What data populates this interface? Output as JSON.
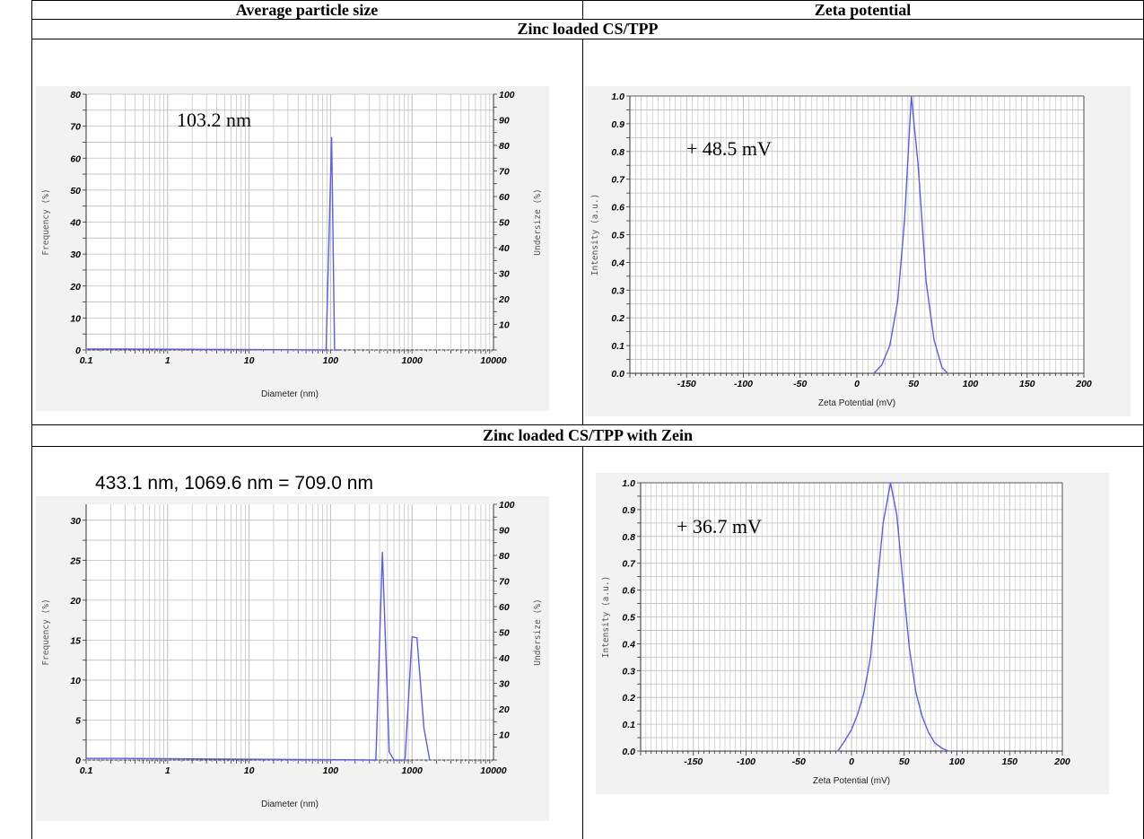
{
  "table": {
    "col_headers": [
      "Average particle size",
      "Zeta potential"
    ],
    "sections": [
      "Zinc loaded CS/TPP",
      "Zinc loaded CS/TPP with Zein"
    ]
  },
  "chart_data": [
    {
      "id": "size1",
      "type": "line",
      "xscale": "log",
      "xlim": [
        0.1,
        10000
      ],
      "ylim": [
        0,
        80
      ],
      "y2lim": [
        0,
        100
      ],
      "x_ticks": [
        "0.1",
        "1",
        "10",
        "100",
        "1000",
        "10000"
      ],
      "y_ticks": [
        "0",
        "10",
        "20",
        "30",
        "40",
        "50",
        "60",
        "70",
        "80"
      ],
      "y2_ticks": [
        "10",
        "20",
        "30",
        "40",
        "50",
        "60",
        "70",
        "80",
        "90",
        "100"
      ],
      "xlabel": "Diameter (nm)",
      "ylabel": "Frequency (%)",
      "y2label": "Undersize (%)",
      "annotation": "103.2 nm",
      "grid": true,
      "series": [
        {
          "x": [
            0.1,
            0.3,
            88,
            103,
            112,
            130
          ],
          "y": [
            0.3,
            0.3,
            0,
            66.5,
            0,
            0
          ]
        }
      ]
    },
    {
      "id": "zeta1",
      "type": "line",
      "xlim": [
        -200,
        200
      ],
      "ylim": [
        0,
        1.0
      ],
      "x_ticks": [
        "-150",
        "-100",
        "-50",
        "0",
        "50",
        "100",
        "150",
        "200"
      ],
      "y_ticks": [
        "0.0",
        "0.1",
        "0.2",
        "0.3",
        "0.4",
        "0.5",
        "0.6",
        "0.7",
        "0.8",
        "0.9",
        "1.0"
      ],
      "xlabel": "Zeta Potential (mV)",
      "ylabel": "Intensity (a.u.)",
      "annotation": "+ 48.5 mV",
      "grid": true,
      "series": [
        {
          "x": [
            15,
            22,
            29,
            36,
            42,
            48,
            54,
            61,
            68,
            75,
            80
          ],
          "y": [
            0,
            0.03,
            0.1,
            0.26,
            0.55,
            1.0,
            0.75,
            0.33,
            0.12,
            0.02,
            0
          ]
        }
      ]
    },
    {
      "id": "size2",
      "type": "line",
      "xscale": "log",
      "xlim": [
        0.1,
        10000
      ],
      "ylim": [
        0,
        32
      ],
      "y2lim": [
        0,
        100
      ],
      "x_ticks": [
        "0.1",
        "1",
        "10",
        "100",
        "1000",
        "10000"
      ],
      "y_ticks": [
        "0",
        "5",
        "10",
        "15",
        "20",
        "25",
        "30"
      ],
      "y2_ticks": [
        "10",
        "20",
        "30",
        "40",
        "50",
        "60",
        "70",
        "80",
        "90",
        "100"
      ],
      "xlabel": "Diameter (nm)",
      "ylabel": "Frequency (%)",
      "y2label": "Undersize (%)",
      "annotation": "433.1 nm, 1069.6 nm = 709.0 nm",
      "grid": true,
      "series": [
        {
          "x": [
            0.1,
            0.3,
            360,
            433,
            525,
            600,
            820,
            1000,
            1150,
            1400,
            1650
          ],
          "y": [
            0.2,
            0.2,
            0,
            26,
            1,
            0,
            0,
            15.4,
            15.3,
            4,
            0
          ]
        }
      ]
    },
    {
      "id": "zeta2",
      "type": "line",
      "xlim": [
        -200,
        200
      ],
      "ylim": [
        0,
        1.0
      ],
      "x_ticks": [
        "-150",
        "-100",
        "-50",
        "0",
        "50",
        "100",
        "150",
        "200"
      ],
      "y_ticks": [
        "0.0",
        "0.1",
        "0.2",
        "0.3",
        "0.4",
        "0.5",
        "0.6",
        "0.7",
        "0.8",
        "0.9",
        "1.0"
      ],
      "xlabel": "Zeta Potential (mV)",
      "ylabel": "Intensity (a.u.)",
      "annotation": "+ 36.7 mV",
      "grid": true,
      "series": [
        {
          "x": [
            -13,
            -6,
            0,
            6,
            12,
            18,
            24,
            30,
            37,
            43,
            49,
            55,
            61,
            67,
            73,
            79,
            86,
            92
          ],
          "y": [
            0,
            0.04,
            0.08,
            0.14,
            0.22,
            0.35,
            0.6,
            0.85,
            1.0,
            0.88,
            0.62,
            0.38,
            0.22,
            0.13,
            0.07,
            0.03,
            0.01,
            0
          ]
        }
      ]
    }
  ]
}
